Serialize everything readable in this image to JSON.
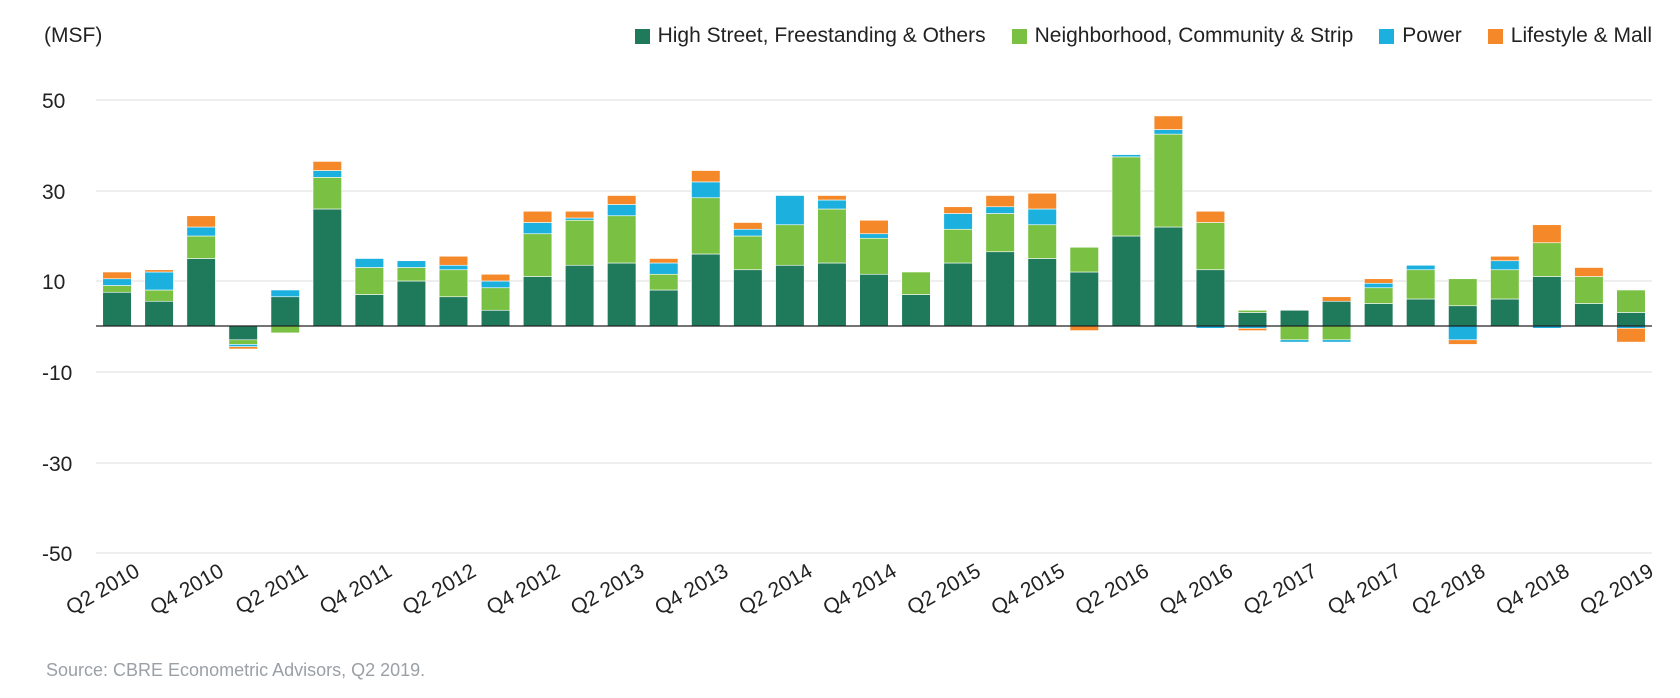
{
  "unit_label": "(MSF)",
  "source_note": "Source: CBRE Econometric Advisors, Q2 2019.",
  "chart_data": {
    "type": "bar",
    "stacked": true,
    "ylabel": "(MSF)",
    "ylim": [
      -50,
      50
    ],
    "y_ticks": [
      50,
      30,
      10,
      -10,
      -30,
      -50
    ],
    "grid": true,
    "legend_position": "top-right",
    "categories": [
      "Q2 2010",
      "Q3 2010",
      "Q4 2010",
      "Q1 2011",
      "Q2 2011",
      "Q3 2011",
      "Q4 2011",
      "Q1 2012",
      "Q2 2012",
      "Q3 2012",
      "Q4 2012",
      "Q1 2013",
      "Q2 2013",
      "Q3 2013",
      "Q4 2013",
      "Q1 2014",
      "Q2 2014",
      "Q3 2014",
      "Q4 2014",
      "Q1 2015",
      "Q2 2015",
      "Q3 2015",
      "Q4 2015",
      "Q1 2016",
      "Q2 2016",
      "Q3 2016",
      "Q4 2016",
      "Q1 2017",
      "Q2 2017",
      "Q3 2017",
      "Q4 2017",
      "Q1 2018",
      "Q2 2018",
      "Q3 2018",
      "Q4 2018",
      "Q1 2019",
      "Q2 2019"
    ],
    "x_tick_labels": [
      "Q2 2010",
      "Q4 2010",
      "Q2 2011",
      "Q4 2011",
      "Q2 2012",
      "Q4 2012",
      "Q2 2013",
      "Q4 2013",
      "Q2 2014",
      "Q4 2014",
      "Q2 2015",
      "Q4 2015",
      "Q2 2016",
      "Q4 2016",
      "Q2 2017",
      "Q4 2017",
      "Q2 2018",
      "Q4 2018",
      "Q2 2019"
    ],
    "series": [
      {
        "name": "High Street, Freestanding & Others",
        "color": "#1f7a5c",
        "values": [
          7.5,
          5.5,
          15,
          -3,
          6.5,
          26,
          7,
          10,
          6.5,
          3.5,
          11,
          13.5,
          14,
          8,
          16,
          12.5,
          13.5,
          14,
          11.5,
          7,
          14,
          16.5,
          15,
          12,
          20,
          22,
          12.5,
          3,
          3.5,
          5.5,
          5,
          6,
          4.5,
          6,
          11,
          5,
          3
        ]
      },
      {
        "name": "Neighborhood, Community & Strip",
        "color": "#7ac143",
        "values": [
          1.5,
          2.5,
          5,
          -1,
          -1.5,
          7,
          6,
          3,
          6,
          5,
          9.5,
          10,
          10.5,
          3.5,
          12.5,
          7.5,
          9,
          12,
          8,
          5,
          7.5,
          8.5,
          7.5,
          5.5,
          17.5,
          20.5,
          10.5,
          0.5,
          -3,
          -3,
          3.5,
          6.5,
          6,
          6.5,
          7.5,
          6,
          5
        ]
      },
      {
        "name": "Power",
        "color": "#1bb0de",
        "values": [
          1.5,
          4,
          2,
          -0.5,
          1.5,
          1.5,
          2,
          1.5,
          1,
          1.5,
          2.5,
          0.5,
          2.5,
          2.5,
          3.5,
          1.5,
          6.5,
          2,
          1,
          0,
          3.5,
          1.5,
          3.5,
          0,
          0.5,
          1,
          -0.5,
          -0.5,
          -0.5,
          -0.5,
          1,
          1,
          -3,
          2,
          -0.5,
          0,
          -0.5
        ]
      },
      {
        "name": "Lifestyle & Mall",
        "color": "#f5892a",
        "values": [
          1.5,
          0.5,
          2.5,
          -0.5,
          0,
          2,
          0,
          0,
          2,
          1.5,
          2.5,
          1.5,
          2,
          1,
          2.5,
          1.5,
          0,
          1,
          3,
          0,
          1.5,
          2.5,
          3.5,
          -1,
          0,
          3,
          2.5,
          -0.5,
          0,
          1,
          1,
          0,
          -1,
          1,
          4,
          2,
          -3
        ]
      }
    ]
  }
}
